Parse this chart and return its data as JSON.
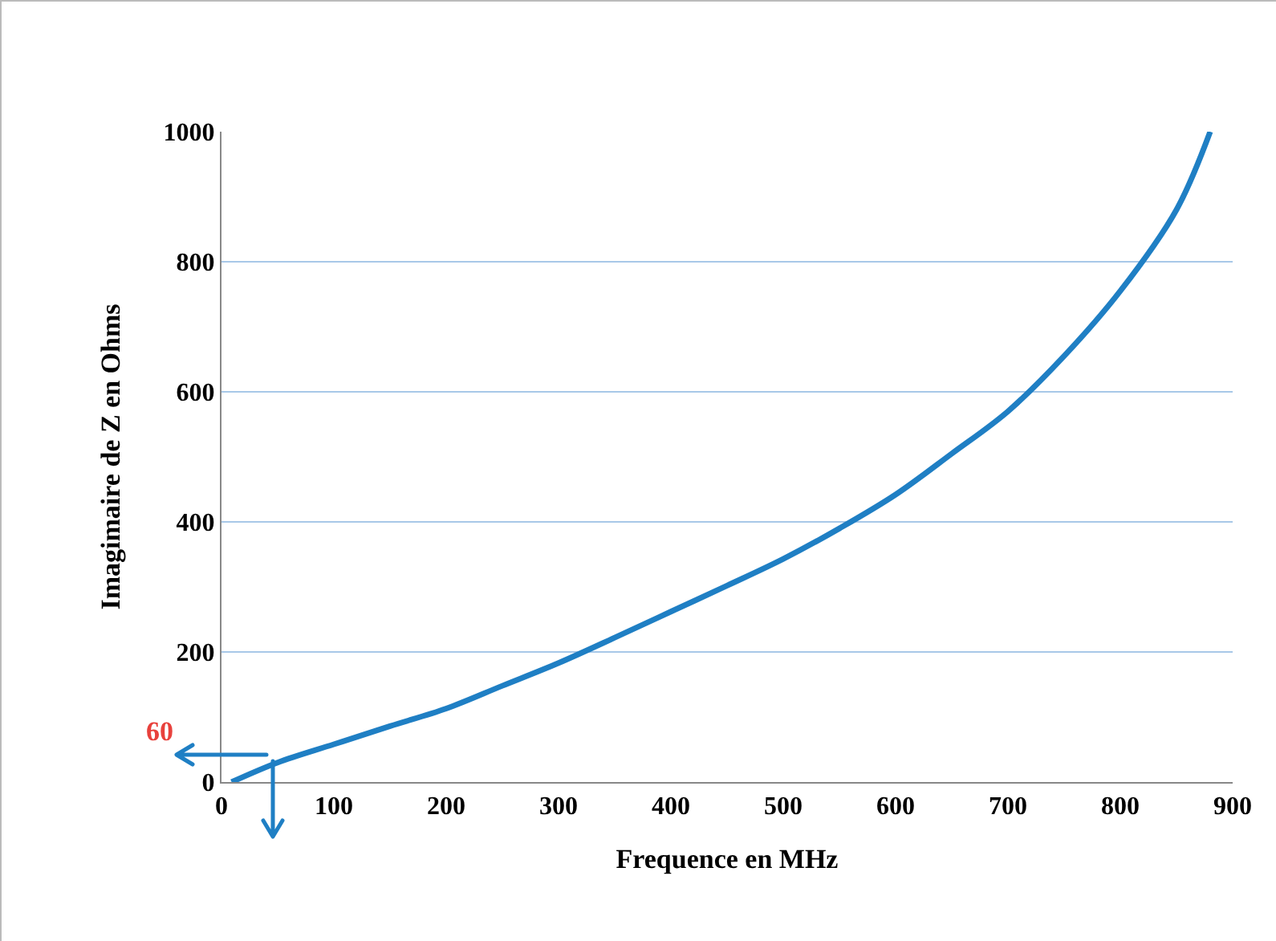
{
  "chart_data": {
    "type": "line",
    "xlabel": "Frequence en MHz",
    "ylabel": "Imagimaire de Z en Ohms",
    "x": [
      9,
      50,
      100,
      150,
      200,
      250,
      300,
      350,
      400,
      450,
      500,
      550,
      600,
      650,
      700,
      750,
      800,
      850,
      880
    ],
    "series": [
      {
        "color": "#1f7fc4",
        "values": [
          0,
          30,
          58,
          86,
          113,
          148,
          183,
          222,
          262,
          302,
          343,
          390,
          442,
          505,
          570,
          655,
          755,
          880,
          1000
        ]
      }
    ],
    "xlim": [
      0,
      900
    ],
    "xticks": [
      0,
      100,
      200,
      300,
      400,
      500,
      600,
      700,
      800,
      900
    ],
    "ylim": [
      0,
      1000
    ],
    "yticks": [
      0,
      200,
      400,
      600,
      800,
      1000
    ],
    "grid": "y",
    "legend": false,
    "marker": "none",
    "line_style": "solid",
    "annotations": [
      "60"
    ]
  }
}
